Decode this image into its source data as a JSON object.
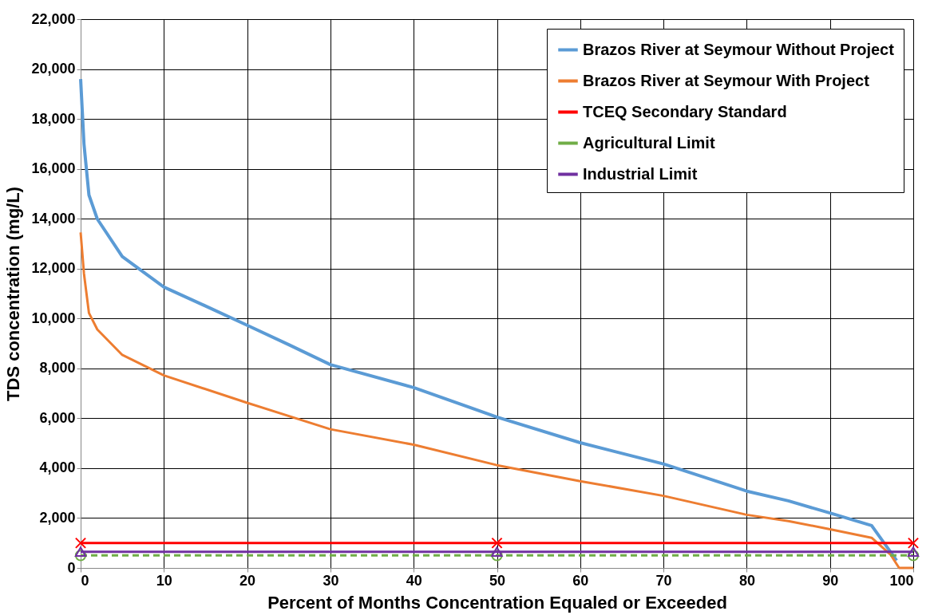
{
  "chart_data": {
    "type": "line",
    "xlabel": "Percent of Months Concentration Equaled or Exceeded",
    "ylabel": "TDS concentration (mg/L)",
    "xlim": [
      0,
      100
    ],
    "xticks": [
      0,
      10,
      20,
      30,
      40,
      50,
      60,
      70,
      80,
      90,
      100
    ],
    "ylim": [
      0,
      22000
    ],
    "yticks": [
      {
        "value": 0,
        "label": "0"
      },
      {
        "value": 2000,
        "label": "2,000"
      },
      {
        "value": 4000,
        "label": "4,000"
      },
      {
        "value": 6000,
        "label": "6,000"
      },
      {
        "value": 8000,
        "label": "8,000"
      },
      {
        "value": 10000,
        "label": "10,000"
      },
      {
        "value": 12000,
        "label": "12,000"
      },
      {
        "value": 14000,
        "label": "14,000"
      },
      {
        "value": 16000,
        "label": "16,000"
      },
      {
        "value": 18000,
        "label": "18,000"
      },
      {
        "value": 20000,
        "label": "20,000"
      },
      {
        "value": 22000,
        "label": "22,000"
      }
    ],
    "grid": true,
    "legend": "top right",
    "series": [
      {
        "name": "Brazos River at Seymour Without Project",
        "color": "#5b9bd5",
        "marker": "none",
        "line_style": "solid",
        "x": [
          0,
          0.4,
          1,
          2,
          5,
          10,
          15,
          20,
          25,
          30,
          40,
          50,
          60,
          70,
          80,
          85,
          90,
          95,
          98
        ],
        "values": [
          19600,
          17000,
          14950,
          13990,
          12480,
          11260,
          10500,
          9730,
          8950,
          8150,
          7230,
          6050,
          5020,
          4170,
          3080,
          2690,
          2200,
          1700,
          300
        ]
      },
      {
        "name": "Brazos River at Seymour With Project",
        "color": "#ed7d31",
        "marker": "none",
        "line_style": "solid",
        "x": [
          0,
          0.4,
          1,
          2,
          5,
          10,
          20,
          30,
          40,
          50,
          60,
          70,
          80,
          85,
          90,
          95,
          97.3,
          98.3,
          100
        ],
        "values": [
          13450,
          11800,
          10220,
          9560,
          8540,
          7720,
          6620,
          5560,
          4940,
          4120,
          3480,
          2890,
          2130,
          1880,
          1550,
          1210,
          520,
          0,
          0
        ]
      },
      {
        "name": "TCEQ Secondary Standard",
        "color": "#ff0000",
        "marker": "cross",
        "line_style": "solid",
        "x": [
          0,
          50,
          100
        ],
        "values": [
          1000,
          1000,
          1000
        ]
      },
      {
        "name": "Agricultural Limit",
        "color": "#70ad47",
        "marker": "circle",
        "line_style": "dashed",
        "x": [
          0,
          50,
          100
        ],
        "values": [
          500,
          500,
          500
        ]
      },
      {
        "name": "Industrial Limit",
        "color": "#7030a0",
        "marker": "triangle",
        "line_style": "solid",
        "x": [
          0,
          50,
          100
        ],
        "values": [
          650,
          650,
          650
        ]
      }
    ]
  }
}
